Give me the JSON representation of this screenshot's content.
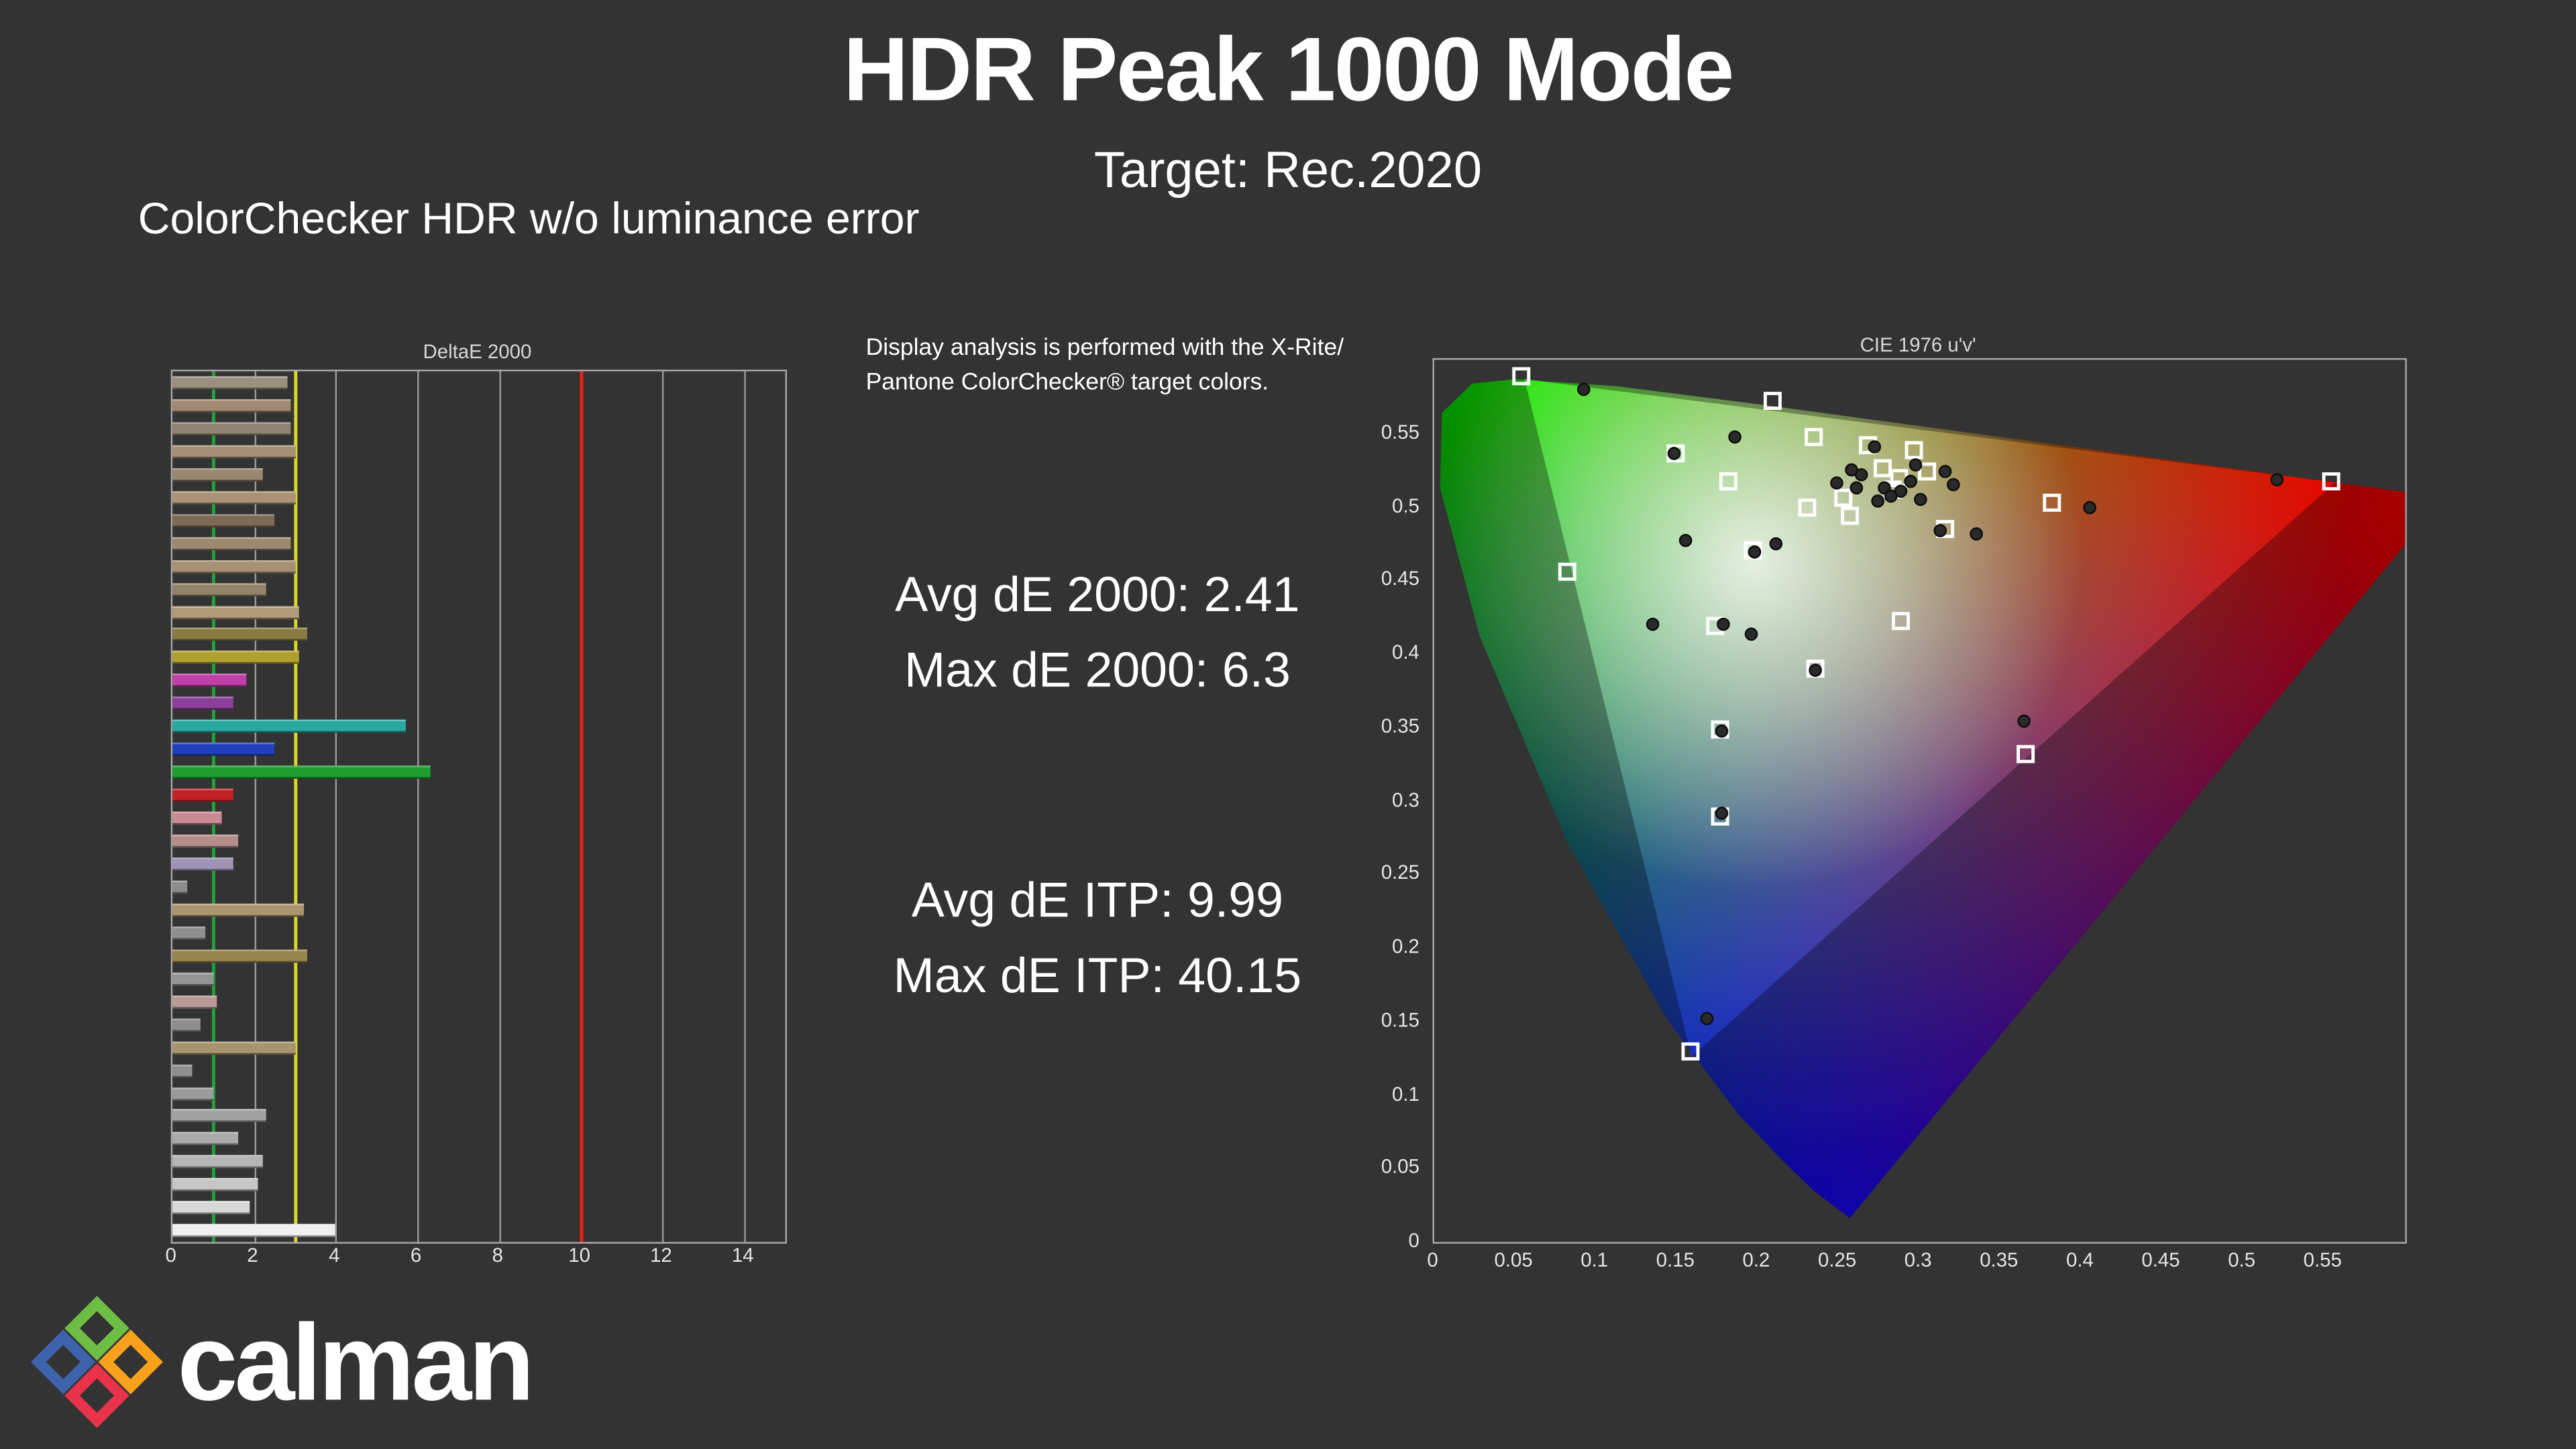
{
  "colors": {
    "background": "#333333",
    "plot_border": "#a8a8a8",
    "text": "#ffffff"
  },
  "header": {
    "title": "HDR Peak 1000 Mode",
    "subtitle": "Target: Rec.2020",
    "section_label": "ColorChecker HDR w/o luminance error"
  },
  "note": {
    "line1": "Display analysis is performed with the X-Rite/",
    "line2": "Pantone ColorChecker® target colors."
  },
  "stats": {
    "avg_de2000": "Avg dE 2000: 2.41",
    "max_de2000": "Max dE 2000: 6.3",
    "avg_deitp": "Avg dE ITP: 9.99",
    "max_deitp": "Max dE ITP: 40.15"
  },
  "logo": {
    "text": "calman"
  },
  "chart_data": [
    {
      "type": "bar",
      "title": "DeltaE 2000",
      "orientation": "horizontal",
      "xlabel": "",
      "ylabel": "",
      "xlim": [
        0,
        15
      ],
      "grid": true,
      "x_ticks": [
        {
          "v": 0,
          "label": "0"
        },
        {
          "v": 2,
          "label": "2"
        },
        {
          "v": 4,
          "label": "4"
        },
        {
          "v": 6,
          "label": "6"
        },
        {
          "v": 8,
          "label": "8"
        },
        {
          "v": 10,
          "label": "10"
        },
        {
          "v": 12,
          "label": "12"
        },
        {
          "v": 14,
          "label": "14"
        }
      ],
      "gridlines": [
        2,
        4,
        6,
        8,
        12,
        14
      ],
      "reference_lines": [
        {
          "v": 1,
          "color": "#21a33c",
          "name": "green-limit"
        },
        {
          "v": 3,
          "color": "#d9d926",
          "name": "yellow-limit"
        },
        {
          "v": 10,
          "color": "#f02218",
          "name": "red-limit"
        }
      ],
      "bars": [
        {
          "color": "#9b8f7f",
          "value": 2.8
        },
        {
          "color": "#a08b72",
          "value": 2.9
        },
        {
          "color": "#8f8270",
          "value": 2.9
        },
        {
          "color": "#a59076",
          "value": 3.0
        },
        {
          "color": "#99876f",
          "value": 2.2
        },
        {
          "color": "#ab9274",
          "value": 3.0
        },
        {
          "color": "#7d6b55",
          "value": 2.5
        },
        {
          "color": "#9c8a6f",
          "value": 2.9
        },
        {
          "color": "#a79175",
          "value": 3.0
        },
        {
          "color": "#93836b",
          "value": 2.3
        },
        {
          "color": "#b09a77",
          "value": 3.1
        },
        {
          "color": "#8a7b42",
          "value": 3.3
        },
        {
          "color": "#b0a030",
          "value": 3.1
        },
        {
          "color": "#c03fa8",
          "value": 1.8
        },
        {
          "color": "#8b3f98",
          "value": 1.5
        },
        {
          "color": "#2aa7a0",
          "value": 5.7
        },
        {
          "color": "#2040c0",
          "value": 2.5
        },
        {
          "color": "#1e9e30",
          "value": 6.3
        },
        {
          "color": "#c32222",
          "value": 1.5
        },
        {
          "color": "#c98a93",
          "value": 1.2
        },
        {
          "color": "#b58d89",
          "value": 1.6
        },
        {
          "color": "#9f93b8",
          "value": 1.5
        },
        {
          "color": "#8c8c8c",
          "value": 0.35
        },
        {
          "color": "#ab9671",
          "value": 3.2
        },
        {
          "color": "#8f8f8f",
          "value": 0.8
        },
        {
          "color": "#97854e",
          "value": 3.3
        },
        {
          "color": "#969696",
          "value": 1.0
        },
        {
          "color": "#b79a94",
          "value": 1.1
        },
        {
          "color": "#8d8d8d",
          "value": 0.7
        },
        {
          "color": "#a8946d",
          "value": 3.0
        },
        {
          "color": "#909090",
          "value": 0.5
        },
        {
          "color": "#9a9a9a",
          "value": 1.0
        },
        {
          "color": "#a2a2a2",
          "value": 2.3
        },
        {
          "color": "#ababab",
          "value": 1.6
        },
        {
          "color": "#b5b5b5",
          "value": 2.2
        },
        {
          "color": "#c6c6c6",
          "value": 2.1
        },
        {
          "color": "#d8d8d8",
          "value": 1.9
        },
        {
          "color": "#f0f0f0",
          "value": 4.0
        }
      ]
    },
    {
      "type": "scatter",
      "title": "CIE 1976 u'v'",
      "xlim": [
        0,
        0.6
      ],
      "ylim": [
        0,
        0.6
      ],
      "x_ticks": [
        {
          "v": 0,
          "label": "0"
        },
        {
          "v": 0.05,
          "label": "0.05"
        },
        {
          "v": 0.1,
          "label": "0.1"
        },
        {
          "v": 0.15,
          "label": "0.15"
        },
        {
          "v": 0.2,
          "label": "0.2"
        },
        {
          "v": 0.25,
          "label": "0.25"
        },
        {
          "v": 0.3,
          "label": "0.3"
        },
        {
          "v": 0.35,
          "label": "0.35"
        },
        {
          "v": 0.4,
          "label": "0.4"
        },
        {
          "v": 0.45,
          "label": "0.45"
        },
        {
          "v": 0.5,
          "label": "0.5"
        },
        {
          "v": 0.55,
          "label": "0.55"
        }
      ],
      "y_ticks": [
        {
          "v": 0.55,
          "label": "0.55"
        },
        {
          "v": 0.5,
          "label": "0.5"
        },
        {
          "v": 0.45,
          "label": "0.45"
        },
        {
          "v": 0.4,
          "label": "0.4"
        },
        {
          "v": 0.35,
          "label": "0.35"
        },
        {
          "v": 0.3,
          "label": "0.3"
        },
        {
          "v": 0.25,
          "label": "0.25"
        },
        {
          "v": 0.2,
          "label": "0.2"
        },
        {
          "v": 0.15,
          "label": "0.15"
        },
        {
          "v": 0.1,
          "label": "0.1"
        },
        {
          "v": 0.05,
          "label": "0.05"
        },
        {
          "v": 0,
          "label": "0"
        }
      ],
      "gamut_triangle_uv": [
        [
          0.557,
          0.517
        ],
        [
          0.056,
          0.587
        ],
        [
          0.159,
          0.126
        ]
      ],
      "series": [
        {
          "name": "reference-target",
          "marker": "square",
          "color": "#ffffff",
          "points": [
            [
              0.054,
              0.589
            ],
            [
              0.209,
              0.572
            ],
            [
              0.554,
              0.517
            ],
            [
              0.235,
              0.548
            ],
            [
              0.296,
              0.539
            ],
            [
              0.268,
              0.542
            ],
            [
              0.277,
              0.526
            ],
            [
              0.382,
              0.503
            ],
            [
              0.253,
              0.506
            ],
            [
              0.23,
              0.5
            ],
            [
              0.257,
              0.494
            ],
            [
              0.283,
              0.512
            ],
            [
              0.287,
              0.52
            ],
            [
              0.305,
              0.524
            ],
            [
              0.316,
              0.485
            ],
            [
              0.197,
              0.47
            ],
            [
              0.082,
              0.456
            ],
            [
              0.149,
              0.536
            ],
            [
              0.182,
              0.517
            ],
            [
              0.288,
              0.422
            ],
            [
              0.236,
              0.39
            ],
            [
              0.177,
              0.349
            ],
            [
              0.365,
              0.332
            ],
            [
              0.177,
              0.289
            ],
            [
              0.158,
              0.13
            ],
            [
              0.174,
              0.419
            ]
          ]
        },
        {
          "name": "measurement",
          "marker": "circle",
          "color": "#2a2a2a",
          "points": [
            [
              0.092,
              0.58
            ],
            [
              0.186,
              0.547
            ],
            [
              0.148,
              0.536
            ],
            [
              0.272,
              0.541
            ],
            [
              0.316,
              0.524
            ],
            [
              0.521,
              0.518
            ],
            [
              0.261,
              0.513
            ],
            [
              0.278,
              0.513
            ],
            [
              0.288,
              0.511
            ],
            [
              0.294,
              0.517
            ],
            [
              0.405,
              0.499
            ],
            [
              0.313,
              0.484
            ],
            [
              0.335,
              0.482
            ],
            [
              0.211,
              0.475
            ],
            [
              0.155,
              0.477
            ],
            [
              0.179,
              0.42
            ],
            [
              0.196,
              0.413
            ],
            [
              0.135,
              0.42
            ],
            [
              0.236,
              0.389
            ],
            [
              0.178,
              0.347
            ],
            [
              0.364,
              0.354
            ],
            [
              0.178,
              0.292
            ],
            [
              0.169,
              0.152
            ],
            [
              0.264,
              0.522
            ],
            [
              0.282,
              0.507
            ],
            [
              0.3,
              0.505
            ],
            [
              0.274,
              0.504
            ],
            [
              0.297,
              0.528
            ],
            [
              0.258,
              0.525
            ],
            [
              0.249,
              0.516
            ],
            [
              0.321,
              0.515
            ],
            [
              0.198,
              0.469
            ]
          ]
        }
      ]
    }
  ]
}
